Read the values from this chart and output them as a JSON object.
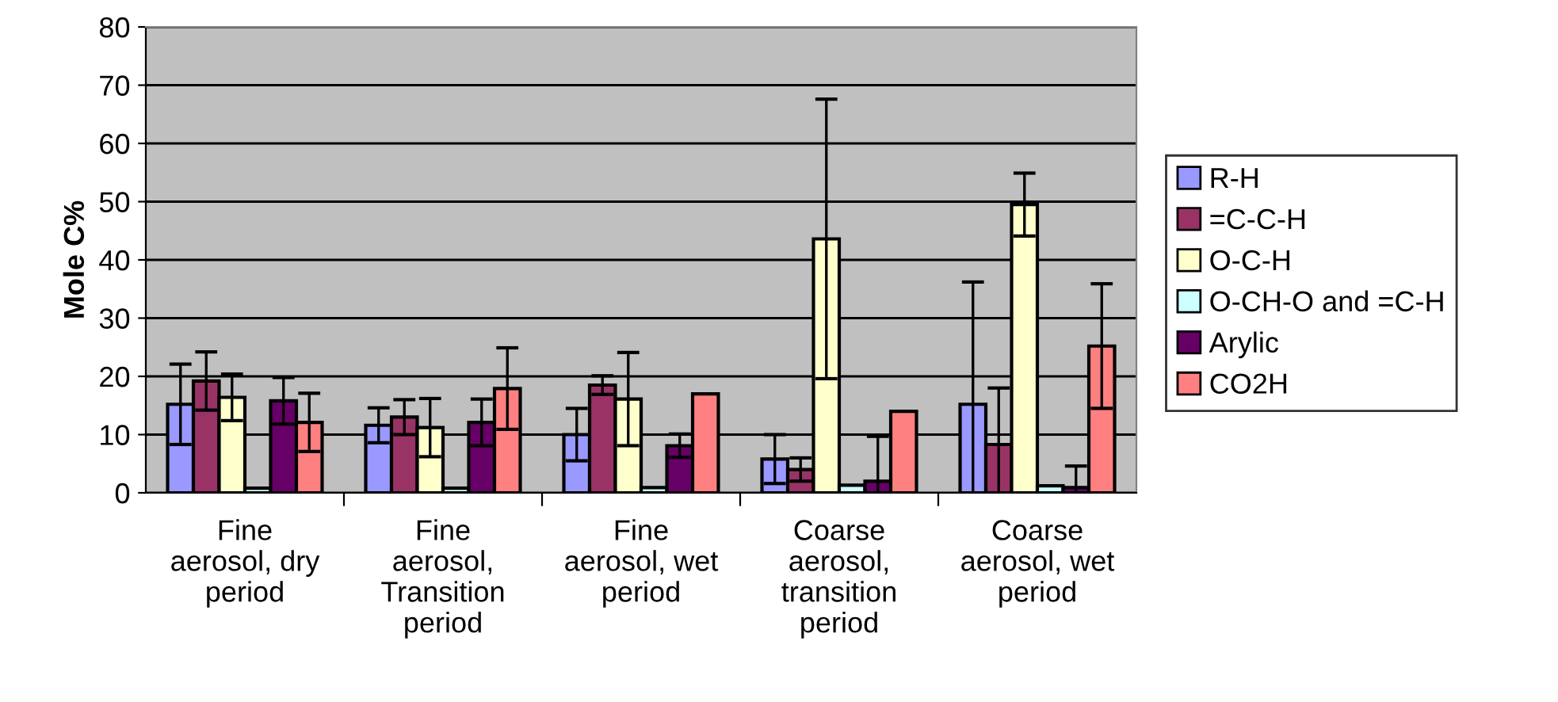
{
  "chart_data": {
    "type": "bar",
    "ylabel": "Mole C%",
    "categories": [
      "Fine aerosol, dry period",
      "Fine aerosol, Transition period",
      "Fine aerosol, wet period",
      "Coarse aerosol, transition period",
      "Coarse aerosol, wet period"
    ],
    "series": [
      {
        "name": "R-H",
        "color": "#9999ff",
        "values": [
          15.2,
          11.6,
          10,
          5.8,
          15.2
        ],
        "errors": [
          6.9,
          3,
          4.5,
          4.2,
          21
        ]
      },
      {
        "name": "=C-C-H",
        "color": "#993366",
        "values": [
          19.2,
          13,
          18.5,
          4,
          8.3
        ],
        "errors": [
          5,
          3,
          1.6,
          2,
          9.7
        ]
      },
      {
        "name": "O-C-H",
        "color": "#ffffcc",
        "values": [
          16.4,
          11.2,
          16.1,
          43.6,
          49.5
        ],
        "errors": [
          4,
          5,
          8,
          24,
          5.4
        ]
      },
      {
        "name": "O-CH-O and =C-H",
        "color": "#ccffff",
        "values": [
          0.8,
          0.8,
          0.9,
          1.3,
          1.2
        ],
        "errors": [
          null,
          null,
          null,
          null,
          null
        ]
      },
      {
        "name": "Arylic",
        "color": "#660066",
        "values": [
          15.8,
          12.1,
          8.1,
          2,
          0.9
        ],
        "errors": [
          4,
          4,
          2,
          7.7,
          3.7
        ]
      },
      {
        "name": "CO2H",
        "color": "#ff8080",
        "values": [
          12.1,
          17.9,
          17,
          14,
          25.2
        ],
        "errors": [
          5,
          7,
          null,
          null,
          10.7
        ]
      }
    ],
    "ylim": [
      0,
      80
    ],
    "yticks": [
      0,
      10,
      20,
      30,
      40,
      50,
      60,
      70,
      80
    ],
    "grid": "y",
    "legend": "right"
  }
}
